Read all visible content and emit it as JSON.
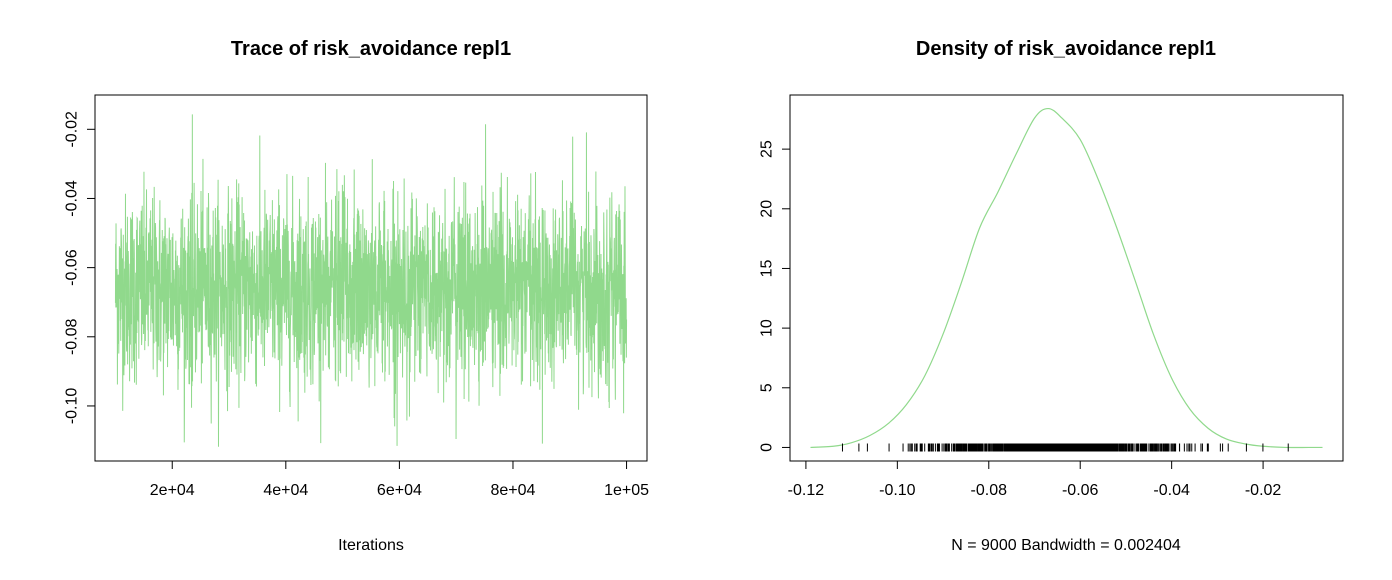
{
  "chart_data": [
    {
      "type": "line",
      "title": "Trace of risk_avoidance repl1",
      "xlabel": "Iterations",
      "ylabel": "",
      "xlim": [
        10000,
        100000
      ],
      "ylim": [
        -0.112,
        -0.014
      ],
      "x_ticks": [
        20000,
        40000,
        60000,
        80000,
        100000
      ],
      "x_tick_labels": [
        "2e+04",
        "4e+04",
        "6e+04",
        "8e+04",
        "1e+05"
      ],
      "y_ticks": [
        -0.1,
        -0.08,
        -0.06,
        -0.04,
        -0.02
      ],
      "y_tick_labels": [
        "-0.10",
        "-0.08",
        "-0.06",
        "-0.04",
        "-0.02"
      ],
      "series": [
        {
          "color": "#90d98c",
          "summary": {
            "n": 9000,
            "mean": -0.066,
            "sd": 0.0135,
            "min": -0.112,
            "max": -0.0155
          },
          "x_start": 10000,
          "x_end": 100000
        }
      ],
      "grid": false,
      "legend": "none"
    },
    {
      "type": "area",
      "title": "Density of risk_avoidance repl1",
      "xlabel": "N = 9000   Bandwidth = 0.002404",
      "ylabel": "",
      "xlim": [
        -0.119,
        -0.007
      ],
      "ylim": [
        0,
        28.4
      ],
      "x_ticks": [
        -0.12,
        -0.1,
        -0.08,
        -0.06,
        -0.04,
        -0.02
      ],
      "x_tick_labels": [
        "-0.12",
        "-0.10",
        "-0.08",
        "-0.06",
        "-0.04",
        "-0.02"
      ],
      "y_ticks": [
        0,
        5,
        10,
        15,
        20,
        25
      ],
      "y_tick_labels": [
        "0",
        "5",
        "10",
        "15",
        "20",
        "25"
      ],
      "series": [
        {
          "color": "#90d98c",
          "x": [
            -0.119,
            -0.114,
            -0.11,
            -0.106,
            -0.102,
            -0.098,
            -0.094,
            -0.09,
            -0.086,
            -0.082,
            -0.078,
            -0.074,
            -0.07,
            -0.067,
            -0.064,
            -0.06,
            -0.056,
            -0.052,
            -0.048,
            -0.044,
            -0.04,
            -0.036,
            -0.032,
            -0.028,
            -0.024,
            -0.02,
            -0.015,
            -0.01,
            -0.007
          ],
          "y": [
            0.0,
            0.1,
            0.4,
            1.0,
            2.0,
            3.6,
            6.0,
            9.5,
            13.8,
            18.4,
            21.4,
            24.6,
            27.6,
            28.4,
            27.6,
            25.8,
            22.4,
            18.4,
            14.0,
            9.5,
            5.8,
            3.2,
            1.6,
            0.7,
            0.3,
            0.1,
            0.0,
            0.0,
            0.0
          ]
        }
      ],
      "rug": {
        "from": -0.112,
        "to": -0.0145,
        "n": 9000
      },
      "grid": false,
      "legend": "none"
    }
  ]
}
